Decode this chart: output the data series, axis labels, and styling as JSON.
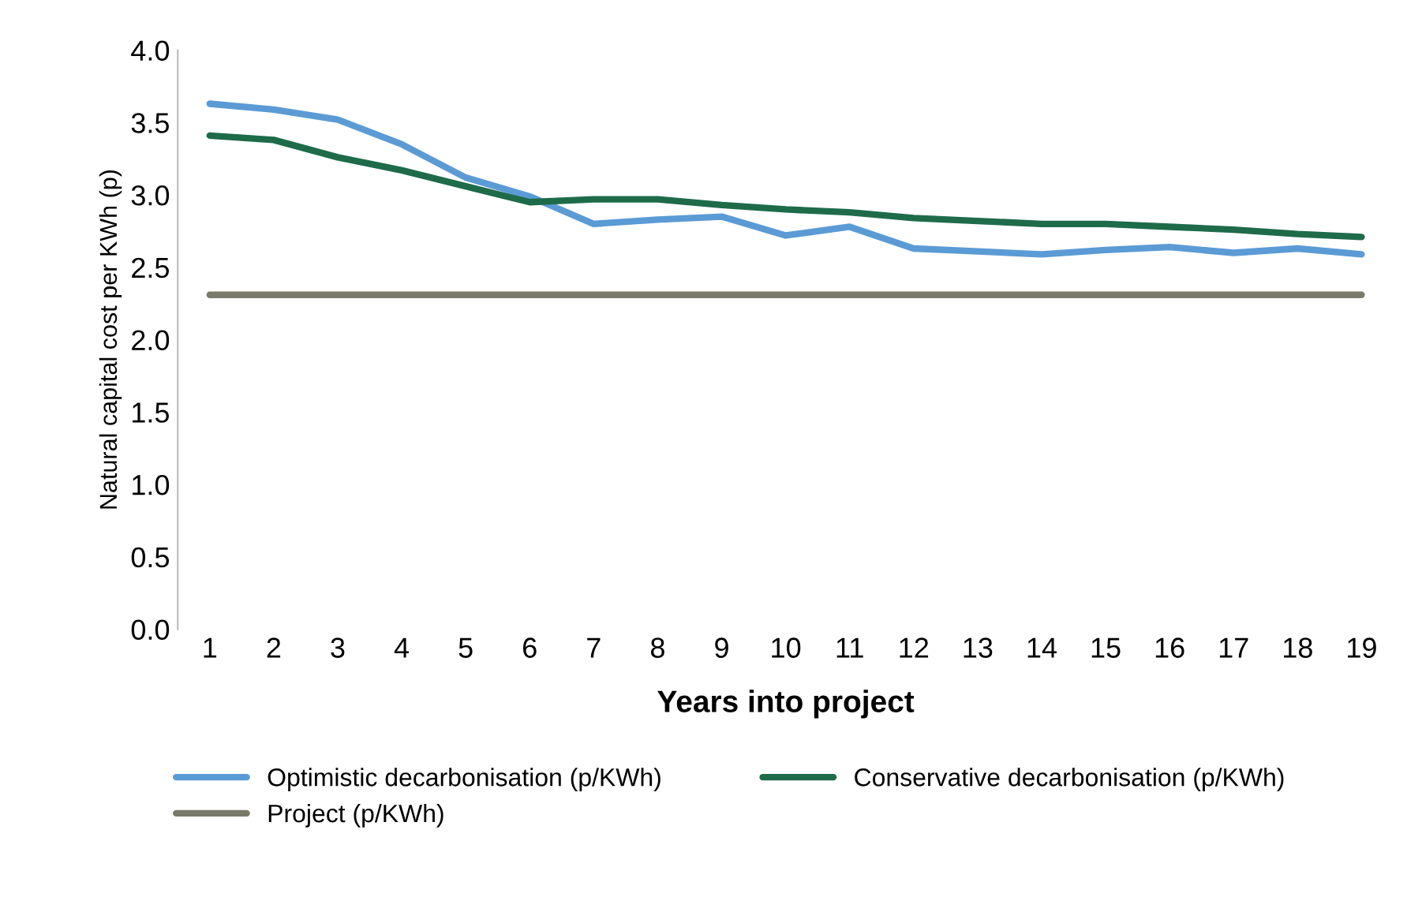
{
  "chart_data": {
    "type": "line",
    "xlabel": "Years into project",
    "ylabel": "Natural capital cost per KWh (p)",
    "categories": [
      "1",
      "2",
      "3",
      "4",
      "5",
      "6",
      "7",
      "8",
      "9",
      "10",
      "11",
      "12",
      "13",
      "14",
      "15",
      "16",
      "17",
      "18",
      "19"
    ],
    "series": [
      {
        "name": "Optimistic decarbonisation (p/KWh)",
        "color": "#5b9bd5",
        "values": [
          3.63,
          3.59,
          3.52,
          3.35,
          3.12,
          2.99,
          2.8,
          2.83,
          2.85,
          2.72,
          2.78,
          2.63,
          2.61,
          2.59,
          2.62,
          2.64,
          2.6,
          2.63,
          2.59
        ]
      },
      {
        "name": "Conservative decarbonisation (p/KWh)",
        "color": "#1e6b4a",
        "values": [
          3.41,
          3.38,
          3.26,
          3.17,
          3.06,
          2.95,
          2.97,
          2.97,
          2.93,
          2.9,
          2.88,
          2.84,
          2.82,
          2.8,
          2.8,
          2.78,
          2.76,
          2.73,
          2.71
        ]
      },
      {
        "name": "Project (p/KWh)",
        "color": "#7a7a6a",
        "values": [
          2.31,
          2.31,
          2.31,
          2.31,
          2.31,
          2.31,
          2.31,
          2.31,
          2.31,
          2.31,
          2.31,
          2.31,
          2.31,
          2.31,
          2.31,
          2.31,
          2.31,
          2.31,
          2.31
        ]
      }
    ],
    "ylim": [
      0,
      4
    ],
    "yticks": [
      {
        "value": 0,
        "label": "0.0"
      },
      {
        "value": 0.5,
        "label": "0.5"
      },
      {
        "value": 1,
        "label": "1.0"
      },
      {
        "value": 1.5,
        "label": "1.5"
      },
      {
        "value": 2,
        "label": "2.0"
      },
      {
        "value": 2.5,
        "label": "2.5"
      },
      {
        "value": 3,
        "label": "3.0"
      },
      {
        "value": 3.5,
        "label": "3.5"
      },
      {
        "value": 4,
        "label": "4.0"
      }
    ],
    "grid": false,
    "legend": "bottom",
    "marker": "none",
    "line_style": "solid"
  }
}
